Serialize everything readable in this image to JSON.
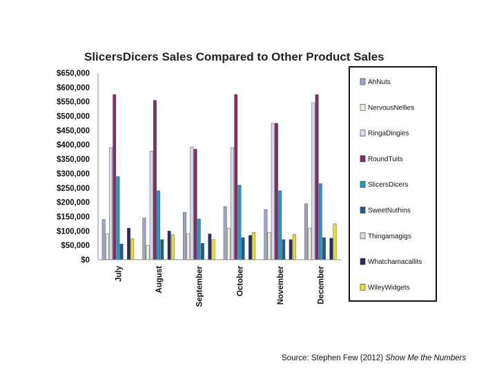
{
  "chart_data": {
    "type": "bar",
    "title": "SlicersDicers Sales Compared to Other Product Sales",
    "categories": [
      "July",
      "August",
      "September",
      "October",
      "November",
      "December"
    ],
    "ylim": [
      0,
      650000
    ],
    "ytick_values": [
      0,
      50000,
      100000,
      150000,
      200000,
      250000,
      300000,
      350000,
      400000,
      450000,
      500000,
      550000,
      600000,
      650000
    ],
    "ytick_labels": [
      "$0",
      "$50,000",
      "$100,000",
      "$150,000",
      "$200,000",
      "$250,000",
      "$300,000",
      "$350,000",
      "$400,000",
      "$450,000",
      "$500,000",
      "$550,000",
      "$600,000",
      "$650,000"
    ],
    "grid": false,
    "legend_position": "right",
    "series": [
      {
        "name": "AhNuts",
        "color": "#9ea5c8",
        "values": [
          140000,
          145000,
          165000,
          185000,
          175000,
          195000
        ]
      },
      {
        "name": "NervousNellies",
        "color": "#eeeed8",
        "values": [
          90000,
          50000,
          90000,
          110000,
          95000,
          110000
        ]
      },
      {
        "name": "RingaDingies",
        "color": "#d8d8ec",
        "values": [
          390000,
          378000,
          393000,
          390000,
          475000,
          547000
        ]
      },
      {
        "name": "RoundTuits",
        "color": "#7e2e62",
        "values": [
          575000,
          555000,
          385000,
          575000,
          475000,
          575000
        ]
      },
      {
        "name": "SlicersDicers",
        "color": "#1a9ad0",
        "values": [
          290000,
          240000,
          142000,
          260000,
          240000,
          265000
        ]
      },
      {
        "name": "SweetNuthins",
        "color": "#1f5c8e",
        "values": [
          55000,
          70000,
          57000,
          77000,
          70000,
          77000
        ]
      },
      {
        "name": "Thingamagigs",
        "color": "#dcdcdc",
        "values": [
          0,
          0,
          0,
          0,
          0,
          0
        ]
      },
      {
        "name": "Whatchamacallits",
        "color": "#2a2a6a",
        "values": [
          110000,
          100000,
          90000,
          85000,
          70000,
          75000
        ]
      },
      {
        "name": "WileyWidgets",
        "color": "#eadc2a",
        "values": [
          73000,
          87000,
          70000,
          95000,
          88000,
          125000
        ]
      }
    ]
  },
  "source": {
    "prefix": "Source: Stephen Few (2012) ",
    "book": "Show Me the Numbers"
  }
}
